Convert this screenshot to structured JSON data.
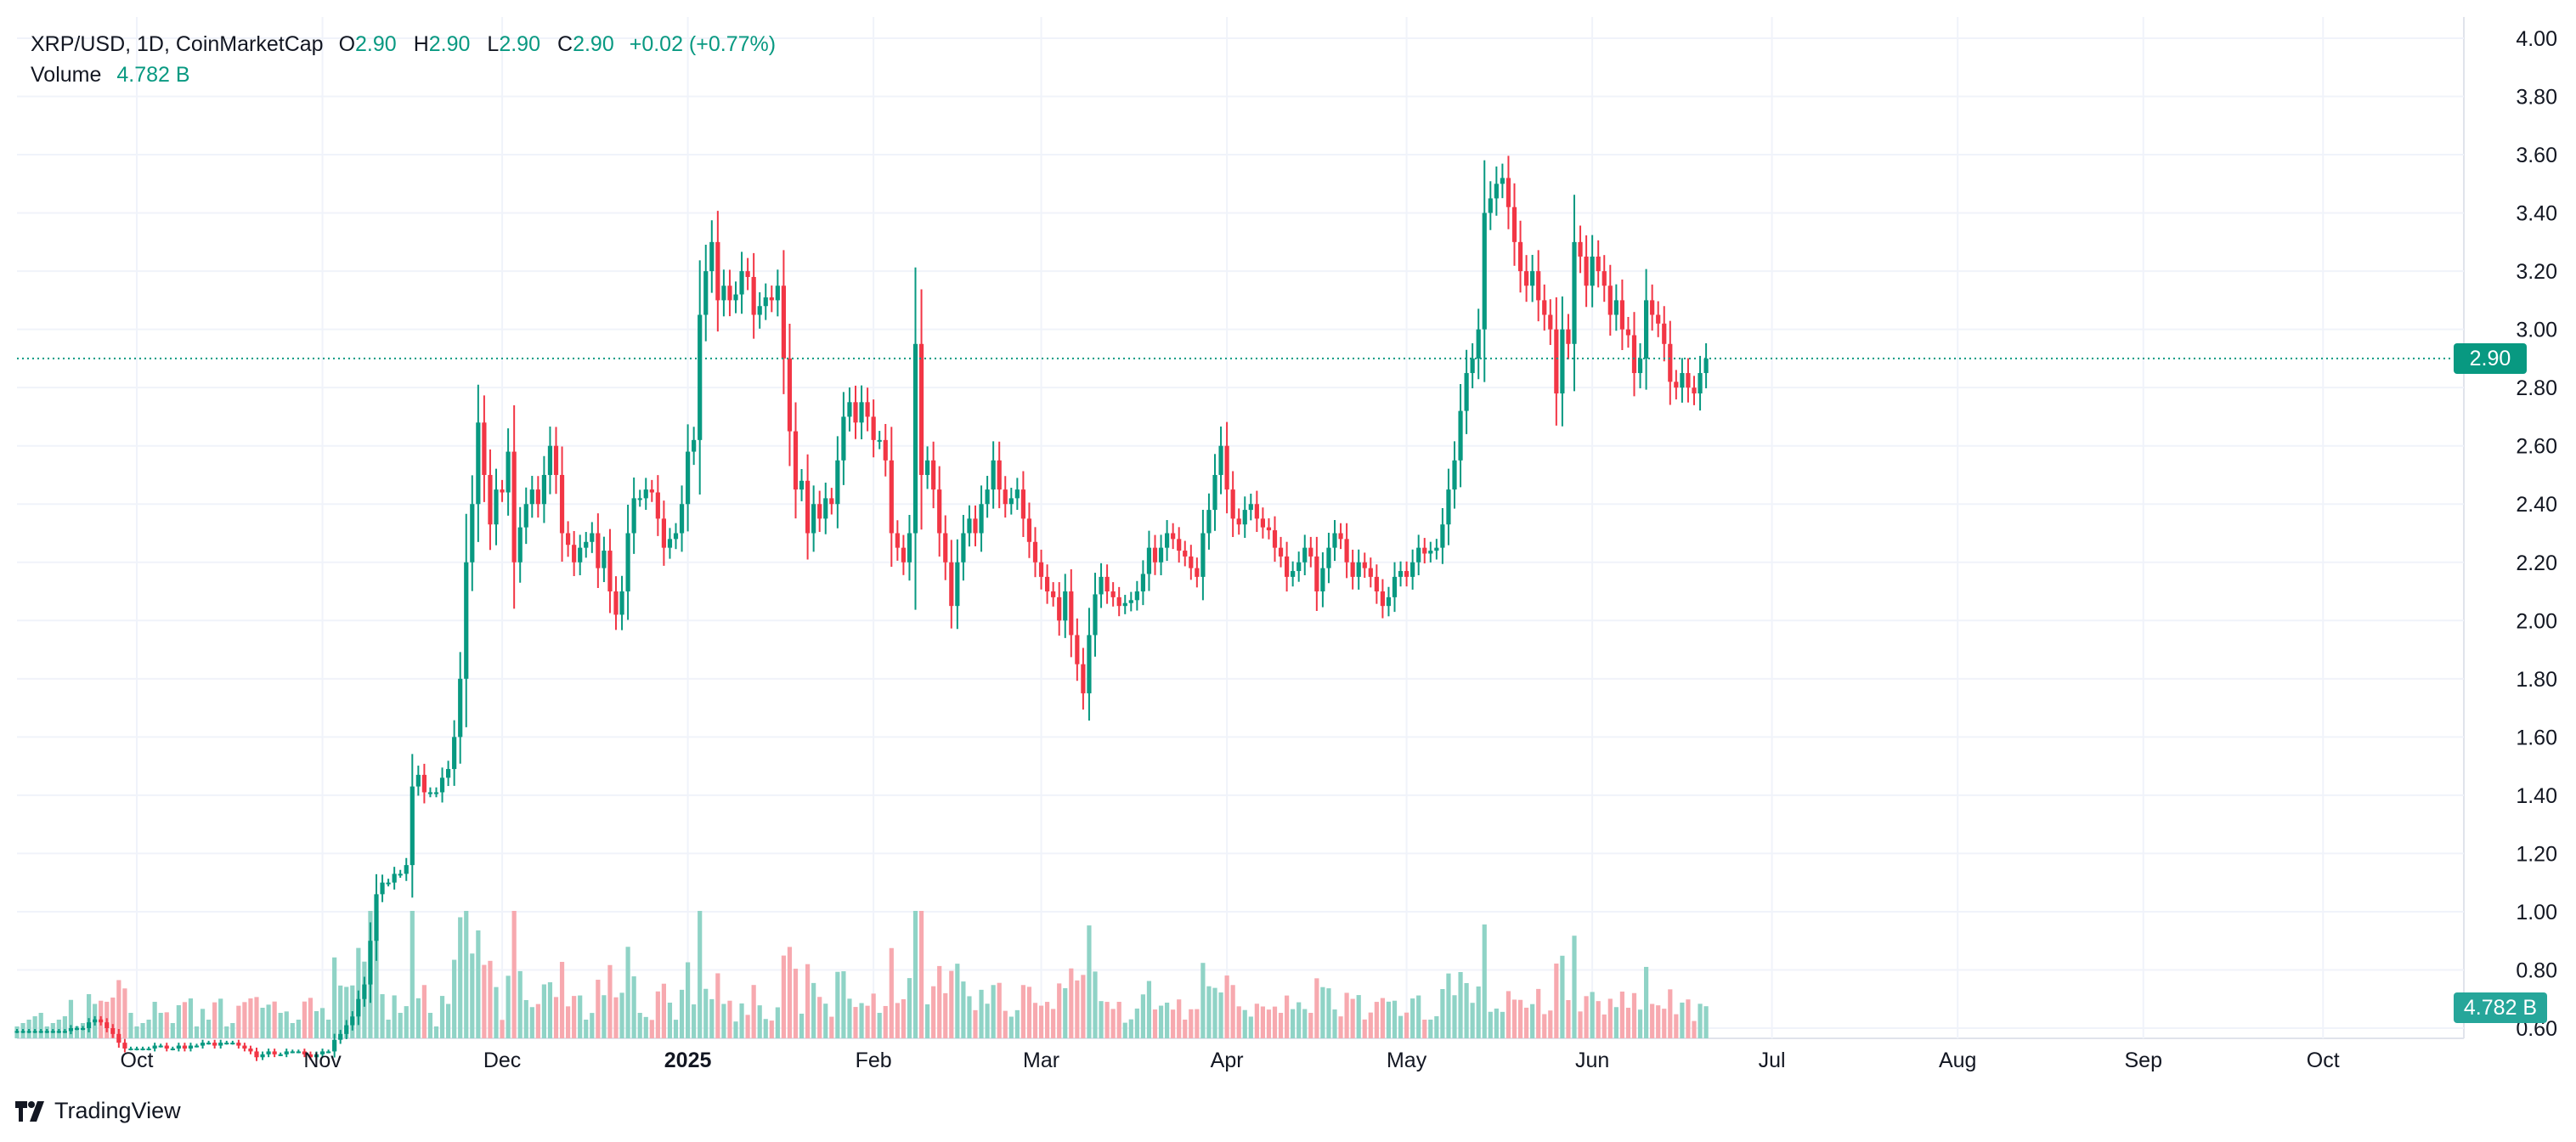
{
  "header": {
    "symbol_line": "XRP/USD, 1D, CoinMarketCap",
    "open_label": "O",
    "open_value": "2.90",
    "high_label": "H",
    "high_value": "2.90",
    "low_label": "L",
    "low_value": "2.90",
    "close_label": "C",
    "close_value": "2.90",
    "change": "+0.02 (+0.77%)",
    "volume_label": "Volume",
    "volume_value": "4.782 B"
  },
  "last_price_tag": "2.90",
  "volume_tag": "4.782 B",
  "brand": "TradingView",
  "colors": {
    "up": "#089981",
    "down": "#f23645",
    "vol_up": "#8fd3c6",
    "vol_down": "#f7a9af",
    "grid": "#f0f3fa"
  },
  "chart_data": {
    "type": "candlestick",
    "title": "XRP/USD, 1D, CoinMarketCap",
    "y_axis_ticks": [
      "4.00",
      "3.80",
      "3.60",
      "3.40",
      "3.20",
      "3.00",
      "2.80",
      "2.60",
      "2.40",
      "2.20",
      "2.00",
      "1.80",
      "1.60",
      "1.40",
      "1.20",
      "1.00",
      "0.80",
      "0.60"
    ],
    "ylim": [
      0.55,
      4.1
    ],
    "x_axis_ticks": [
      "Oct",
      "Nov",
      "Dec",
      "2025",
      "Feb",
      "Mar",
      "Apr",
      "May",
      "Jun",
      "Jul",
      "Aug",
      "Sep",
      "Oct"
    ],
    "x_tick_days": [
      20,
      51,
      81,
      112,
      143,
      171,
      202,
      232,
      263,
      293,
      324,
      355,
      385
    ],
    "last_price": 2.9,
    "daily_close": [
      0.59,
      0.59,
      0.59,
      0.59,
      0.59,
      0.59,
      0.59,
      0.59,
      0.59,
      0.6,
      0.6,
      0.6,
      0.62,
      0.63,
      0.62,
      0.6,
      0.58,
      0.55,
      0.53,
      0.53,
      0.53,
      0.53,
      0.53,
      0.54,
      0.54,
      0.53,
      0.53,
      0.54,
      0.53,
      0.54,
      0.54,
      0.55,
      0.55,
      0.54,
      0.55,
      0.55,
      0.55,
      0.54,
      0.53,
      0.52,
      0.5,
      0.51,
      0.52,
      0.51,
      0.51,
      0.52,
      0.52,
      0.52,
      0.51,
      0.5,
      0.51,
      0.52,
      0.52,
      0.56,
      0.58,
      0.61,
      0.64,
      0.7,
      0.75,
      0.9,
      1.06,
      1.1,
      1.1,
      1.13,
      1.13,
      1.16,
      1.43,
      1.47,
      1.41,
      1.41,
      1.41,
      1.46,
      1.49,
      1.6,
      1.8,
      2.2,
      2.4,
      2.68,
      2.5,
      2.33,
      2.45,
      2.44,
      2.58,
      2.2,
      2.32,
      2.4,
      2.45,
      2.4,
      2.5,
      2.6,
      2.5,
      2.3,
      2.26,
      2.2,
      2.25,
      2.27,
      2.3,
      2.18,
      2.24,
      2.1,
      2.02,
      2.1,
      2.3,
      2.42,
      2.42,
      2.45,
      2.44,
      2.35,
      2.25,
      2.28,
      2.3,
      2.4,
      2.58,
      2.62,
      3.05,
      3.2,
      3.3,
      3.1,
      3.15,
      3.1,
      3.12,
      3.2,
      3.18,
      3.05,
      3.08,
      3.11,
      3.1,
      3.15,
      2.9,
      2.65,
      2.45,
      2.48,
      2.3,
      2.4,
      2.35,
      2.42,
      2.4,
      2.55,
      2.7,
      2.75,
      2.68,
      2.75,
      2.7,
      2.62,
      2.62,
      2.55,
      2.3,
      2.25,
      2.2,
      2.3,
      2.95,
      2.5,
      2.55,
      2.45,
      2.3,
      2.2,
      2.05,
      2.2,
      2.3,
      2.35,
      2.3,
      2.4,
      2.45,
      2.55,
      2.45,
      2.4,
      2.42,
      2.45,
      2.35,
      2.27,
      2.2,
      2.15,
      2.1,
      2.08,
      2.0,
      2.1,
      1.95,
      1.85,
      1.75,
      1.95,
      2.09,
      2.15,
      2.1,
      2.08,
      2.05,
      2.06,
      2.07,
      2.1,
      2.16,
      2.25,
      2.2,
      2.25,
      2.3,
      2.28,
      2.24,
      2.22,
      2.18,
      2.15,
      2.3,
      2.38,
      2.5,
      2.6,
      2.45,
      2.35,
      2.33,
      2.38,
      2.4,
      2.35,
      2.32,
      2.31,
      2.25,
      2.22,
      2.15,
      2.17,
      2.2,
      2.25,
      2.22,
      2.1,
      2.18,
      2.25,
      2.3,
      2.28,
      2.2,
      2.15,
      2.2,
      2.18,
      2.15,
      2.1,
      2.05,
      2.08,
      2.15,
      2.17,
      2.15,
      2.2,
      2.25,
      2.23,
      2.24,
      2.25,
      2.33,
      2.45,
      2.55,
      2.72,
      2.85,
      2.9,
      3.0,
      3.4,
      3.45,
      3.5,
      3.52,
      3.42,
      3.3,
      3.2,
      3.15,
      3.2,
      3.1,
      3.05,
      3.0,
      2.78,
      3.0,
      2.95,
      3.3,
      3.25,
      3.15,
      3.25,
      3.2,
      3.15,
      3.05,
      3.1,
      3.0,
      2.98,
      2.85,
      2.9,
      3.1,
      3.05,
      3.02,
      2.95,
      2.82,
      2.8,
      2.85,
      2.8,
      2.78,
      2.85,
      2.9
    ],
    "volume_axis_label": "Volume"
  }
}
